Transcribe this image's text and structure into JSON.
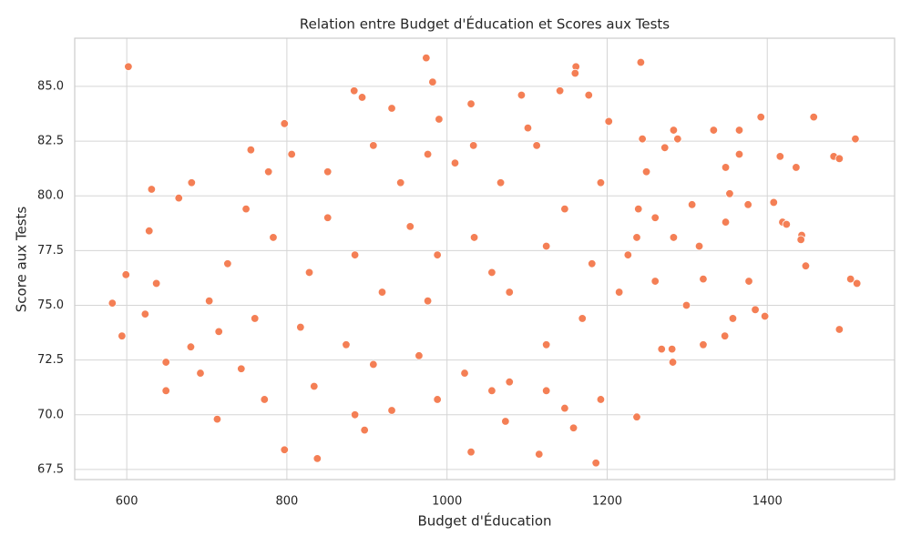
{
  "chart_data": {
    "type": "scatter",
    "title": "Relation entre Budget d'Éducation et Scores aux Tests",
    "xlabel": "Budget d'Éducation",
    "ylabel": "Score aux Tests",
    "color": "#f47f55",
    "grid": true,
    "xlim": [
      535,
      1559
    ],
    "ylim": [
      67.04,
      87.2
    ],
    "xticks": [
      600,
      800,
      1000,
      1200,
      1400
    ],
    "yticks": [
      67.5,
      {
        "value": 70,
        "label": "70.0"
      },
      72.5,
      {
        "value": 75,
        "label": "75.0"
      },
      77.5,
      {
        "value": 80,
        "label": "80.0"
      },
      82.5,
      {
        "value": 85,
        "label": "85.0"
      }
    ],
    "x": [
      602,
      582,
      594,
      599,
      631,
      628,
      637,
      623,
      649,
      649,
      665,
      681,
      680,
      713,
      797,
      838,
      797,
      884,
      894,
      974,
      982,
      1030,
      1030,
      1073,
      1115,
      1186,
      1161,
      1160,
      1177,
      1242,
      1237,
      1192,
      1141,
      1093,
      1202,
      1283,
      1392,
      1458,
      1510,
      1483,
      1490,
      1490,
      1504,
      1512,
      1448,
      1416,
      1436,
      1376,
      1408,
      1419,
      1424,
      1397,
      1385,
      1357,
      1347,
      1320,
      1299,
      1333,
      1365,
      1365,
      1348,
      1353,
      1315,
      1348,
      1443,
      1442,
      1377,
      1320,
      1281,
      1282,
      1268,
      1288,
      1272,
      1244,
      1249,
      1260,
      1239,
      942,
      1010,
      1067,
      954,
      1034,
      988,
      1056,
      919,
      976,
      1078,
      885,
      851,
      828,
      783,
      749,
      726,
      703,
      760,
      817,
      874,
      908,
      965,
      1022,
      1078,
      1124,
      1169,
      1124,
      1147,
      1181,
      1215,
      1237,
      1112,
      1033,
      976,
      908,
      851,
      806,
      777,
      755,
      988,
      931,
      897,
      885,
      1056,
      1147,
      1158,
      834,
      772,
      743,
      715,
      692,
      1124,
      1260,
      1226,
      1283,
      1306,
      1192,
      1101,
      931,
      990
    ],
    "y": [
      85.9,
      75.1,
      73.6,
      76.4,
      80.3,
      78.4,
      76.0,
      74.6,
      72.4,
      71.1,
      79.9,
      80.6,
      73.1,
      69.8,
      68.4,
      68.0,
      83.3,
      84.8,
      84.5,
      86.3,
      85.2,
      68.3,
      84.2,
      69.7,
      68.2,
      67.8,
      85.9,
      85.6,
      84.6,
      86.1,
      69.9,
      70.7,
      84.8,
      84.6,
      83.4,
      83.0,
      83.6,
      83.6,
      82.6,
      81.8,
      81.7,
      73.9,
      76.2,
      76.0,
      76.8,
      81.8,
      81.3,
      79.6,
      79.7,
      78.8,
      78.7,
      74.5,
      74.8,
      74.4,
      73.6,
      73.2,
      75.0,
      83.0,
      83.0,
      81.9,
      81.3,
      80.1,
      77.7,
      78.8,
      78.2,
      78.0,
      76.1,
      76.2,
      73.0,
      72.4,
      73.0,
      82.6,
      82.2,
      82.6,
      81.1,
      79.0,
      79.4,
      80.6,
      81.5,
      80.6,
      78.6,
      78.1,
      77.3,
      76.5,
      75.6,
      75.2,
      75.6,
      77.3,
      79.0,
      76.5,
      78.1,
      79.4,
      76.9,
      75.2,
      74.4,
      74.0,
      73.2,
      72.3,
      72.7,
      71.9,
      71.5,
      73.2,
      74.4,
      77.7,
      79.4,
      76.9,
      75.6,
      78.1,
      82.3,
      82.3,
      81.9,
      82.3,
      81.1,
      81.9,
      81.1,
      82.1,
      70.7,
      70.2,
      69.3,
      70.0,
      71.1,
      70.3,
      69.4,
      71.3,
      70.7,
      72.1,
      73.8,
      71.9,
      71.1,
      76.1,
      77.3,
      78.1,
      79.6,
      80.6,
      83.1,
      84.0,
      83.5
    ]
  }
}
